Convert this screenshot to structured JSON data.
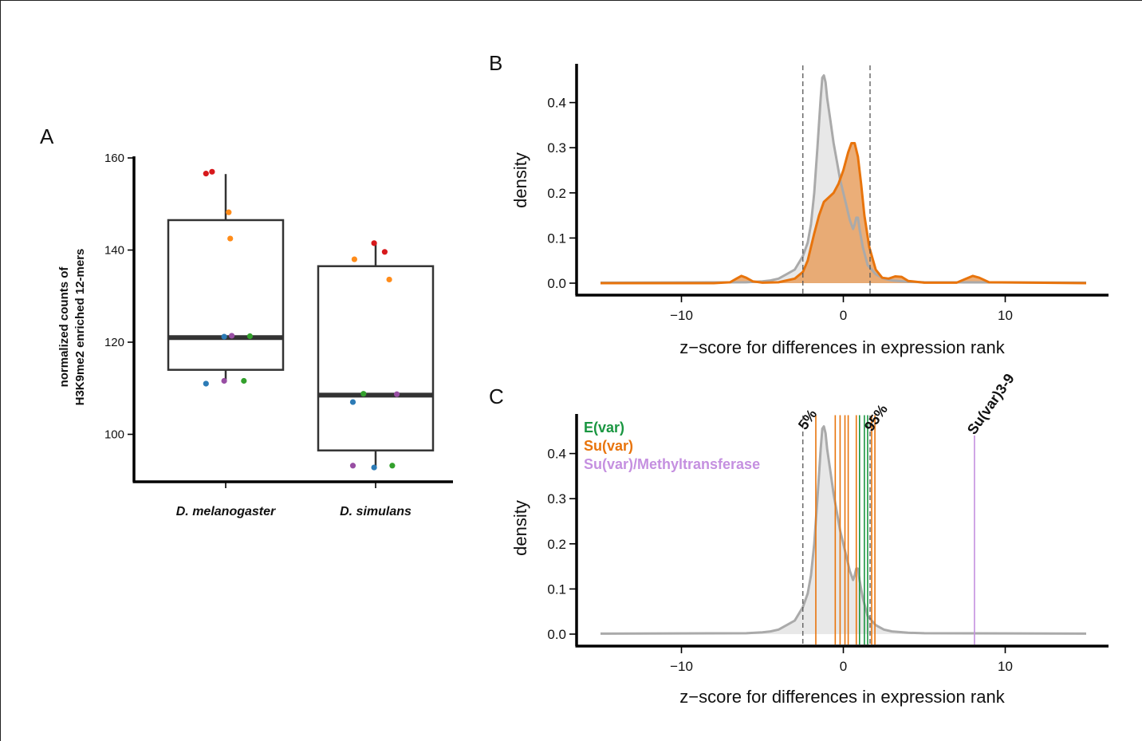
{
  "panels": {
    "a": "A",
    "b": "B",
    "c": "C"
  },
  "colors": {
    "gray_fill": "#d8d8d8",
    "gray_line": "#aaaaaa",
    "orange_line": "#e8740c",
    "orange_fill": "#e8a060",
    "green": "#1a9641",
    "orange": "#e8740c",
    "purple": "#c590e0",
    "dashed": "#555555"
  },
  "chart_data": [
    {
      "panel": "A",
      "type": "box",
      "ylabel": [
        "normalized counts of",
        "H3K9me2 enriched 12-mers"
      ],
      "yticks": [
        100,
        120,
        140,
        160
      ],
      "ylim": [
        90,
        160
      ],
      "categories": [
        "D. melanogaster",
        "D. simulans"
      ],
      "boxes": [
        {
          "name": "D. melanogaster",
          "q1": 114,
          "median": 121,
          "q3": 146.5,
          "whisker_low": 111.5,
          "whisker_high": 156.5
        },
        {
          "name": "D. simulans",
          "q1": 96.5,
          "median": 108.5,
          "q3": 136.5,
          "whisker_low": 93,
          "whisker_high": 141.5
        }
      ],
      "points": [
        {
          "cat": 0,
          "jitter": -0.13,
          "y": 156.6,
          "color": "#d7191c"
        },
        {
          "cat": 0,
          "jitter": -0.09,
          "y": 157,
          "color": "#d7191c"
        },
        {
          "cat": 0,
          "jitter": 0.02,
          "y": 148.2,
          "color": "#ff8c1a"
        },
        {
          "cat": 0,
          "jitter": 0.03,
          "y": 142.5,
          "color": "#ff8c1a"
        },
        {
          "cat": 0,
          "jitter": -0.01,
          "y": 121.2,
          "color": "#2c7bb6"
        },
        {
          "cat": 0,
          "jitter": 0.04,
          "y": 121.4,
          "color": "#984ea3"
        },
        {
          "cat": 0,
          "jitter": 0.16,
          "y": 121.3,
          "color": "#33a02c"
        },
        {
          "cat": 0,
          "jitter": -0.13,
          "y": 111,
          "color": "#2c7bb6"
        },
        {
          "cat": 0,
          "jitter": -0.01,
          "y": 111.6,
          "color": "#984ea3"
        },
        {
          "cat": 0,
          "jitter": 0.12,
          "y": 111.6,
          "color": "#33a02c"
        },
        {
          "cat": 1,
          "jitter": -0.01,
          "y": 141.5,
          "color": "#d7191c"
        },
        {
          "cat": 1,
          "jitter": 0.06,
          "y": 139.6,
          "color": "#d7191c"
        },
        {
          "cat": 1,
          "jitter": -0.14,
          "y": 138,
          "color": "#ff8c1a"
        },
        {
          "cat": 1,
          "jitter": 0.09,
          "y": 133.6,
          "color": "#ff8c1a"
        },
        {
          "cat": 1,
          "jitter": -0.08,
          "y": 108.8,
          "color": "#33a02c"
        },
        {
          "cat": 1,
          "jitter": 0.14,
          "y": 108.7,
          "color": "#984ea3"
        },
        {
          "cat": 1,
          "jitter": -0.15,
          "y": 107,
          "color": "#2c7bb6"
        },
        {
          "cat": 1,
          "jitter": -0.15,
          "y": 93.2,
          "color": "#984ea3"
        },
        {
          "cat": 1,
          "jitter": -0.01,
          "y": 92.8,
          "color": "#2c7bb6"
        },
        {
          "cat": 1,
          "jitter": 0.11,
          "y": 93.2,
          "color": "#33a02c"
        }
      ]
    },
    {
      "panel": "B",
      "type": "area",
      "xlabel": "z−score for differences in expression rank",
      "ylabel": "density",
      "xticks": [
        -10,
        0,
        10
      ],
      "yticks": [
        0.0,
        0.1,
        0.2,
        0.3,
        0.4
      ],
      "xlim": [
        -15,
        15
      ],
      "ylim": [
        0,
        0.46
      ],
      "vlines_dashed": [
        -2.5,
        1.65
      ],
      "series": [
        {
          "style": "gray",
          "x": [
            -15,
            -6,
            -5,
            -4.5,
            -4,
            -3.5,
            -3,
            -2.5,
            -2.2,
            -2,
            -1.8,
            -1.6,
            -1.4,
            -1.3,
            -1.2,
            -1.1,
            -1,
            -0.8,
            -0.6,
            -0.4,
            -0.2,
            0,
            0.2,
            0.4,
            0.6,
            0.7,
            0.8,
            0.9,
            1,
            1.2,
            1.5,
            2,
            2.5,
            3,
            4,
            5,
            15
          ],
          "y": [
            0.001,
            0.002,
            0.004,
            0.006,
            0.01,
            0.02,
            0.03,
            0.06,
            0.09,
            0.13,
            0.2,
            0.3,
            0.41,
            0.455,
            0.46,
            0.445,
            0.41,
            0.36,
            0.31,
            0.27,
            0.23,
            0.2,
            0.17,
            0.14,
            0.12,
            0.13,
            0.145,
            0.145,
            0.12,
            0.08,
            0.04,
            0.02,
            0.01,
            0.006,
            0.003,
            0.002,
            0.001
          ]
        },
        {
          "style": "orange",
          "x": [
            -15,
            -8,
            -7,
            -6.6,
            -6.3,
            -6,
            -5.6,
            -5,
            -4,
            -3,
            -2.5,
            -2.2,
            -2,
            -1.8,
            -1.5,
            -1.2,
            -0.9,
            -0.6,
            -0.3,
            0,
            0.3,
            0.5,
            0.7,
            0.9,
            1.1,
            1.3,
            1.6,
            2,
            2.4,
            2.8,
            3.2,
            3.6,
            4,
            5,
            7,
            7.6,
            8,
            8.4,
            9,
            15
          ],
          "y": [
            0,
            0,
            0.002,
            0.01,
            0.016,
            0.012,
            0.004,
            0.001,
            0.002,
            0.01,
            0.025,
            0.05,
            0.08,
            0.11,
            0.15,
            0.18,
            0.19,
            0.2,
            0.22,
            0.25,
            0.29,
            0.31,
            0.31,
            0.28,
            0.22,
            0.15,
            0.08,
            0.03,
            0.012,
            0.01,
            0.015,
            0.014,
            0.005,
            0.001,
            0.001,
            0.01,
            0.016,
            0.012,
            0.002,
            0
          ]
        }
      ]
    },
    {
      "panel": "C",
      "type": "area",
      "xlabel": "z−score for differences in expression rank",
      "ylabel": "density",
      "xticks": [
        -10,
        0,
        10
      ],
      "yticks": [
        0.0,
        0.1,
        0.2,
        0.3,
        0.4
      ],
      "xlim": [
        -15,
        15
      ],
      "ylim": [
        0,
        0.46
      ],
      "vlines_dashed": [
        -2.5,
        1.65
      ],
      "legend": [
        {
          "label": "E(var)",
          "color": "#1a9641"
        },
        {
          "label": "Su(var)",
          "color": "#e8740c"
        },
        {
          "label": "Su(var)/Methyltransferase",
          "color": "#c590e0"
        }
      ],
      "annotations": [
        {
          "text": "5%",
          "x": -2.5
        },
        {
          "text": "95%",
          "x": 1.65
        },
        {
          "text": "Su(var)3-9",
          "x": 8.1
        }
      ],
      "gene_lines": [
        {
          "x": -1.7,
          "group": "Su(var)"
        },
        {
          "x": -0.5,
          "group": "Su(var)"
        },
        {
          "x": -0.2,
          "group": "Su(var)"
        },
        {
          "x": 0.1,
          "group": "Su(var)"
        },
        {
          "x": 0.3,
          "group": "Su(var)"
        },
        {
          "x": 0.8,
          "group": "Su(var)"
        },
        {
          "x": 1.0,
          "group": "E(var)"
        },
        {
          "x": 1.3,
          "group": "E(var)"
        },
        {
          "x": 1.5,
          "group": "E(var)"
        },
        {
          "x": 1.75,
          "group": "Su(var)"
        },
        {
          "x": 1.95,
          "group": "Su(var)"
        },
        {
          "x": 8.1,
          "group": "Su(var)/Methyltransferase"
        }
      ],
      "series": [
        {
          "style": "gray",
          "x": [
            -15,
            -6,
            -5,
            -4.5,
            -4,
            -3.5,
            -3,
            -2.5,
            -2.2,
            -2,
            -1.8,
            -1.6,
            -1.4,
            -1.3,
            -1.2,
            -1.1,
            -1,
            -0.8,
            -0.6,
            -0.4,
            -0.2,
            0,
            0.2,
            0.4,
            0.6,
            0.7,
            0.8,
            0.9,
            1,
            1.2,
            1.5,
            2,
            2.5,
            3,
            4,
            5,
            15
          ],
          "y": [
            0.001,
            0.002,
            0.004,
            0.006,
            0.01,
            0.02,
            0.03,
            0.06,
            0.09,
            0.13,
            0.2,
            0.3,
            0.41,
            0.455,
            0.46,
            0.445,
            0.41,
            0.36,
            0.31,
            0.27,
            0.23,
            0.2,
            0.17,
            0.14,
            0.12,
            0.13,
            0.145,
            0.145,
            0.12,
            0.08,
            0.04,
            0.02,
            0.01,
            0.006,
            0.003,
            0.002,
            0.001
          ]
        }
      ]
    }
  ]
}
